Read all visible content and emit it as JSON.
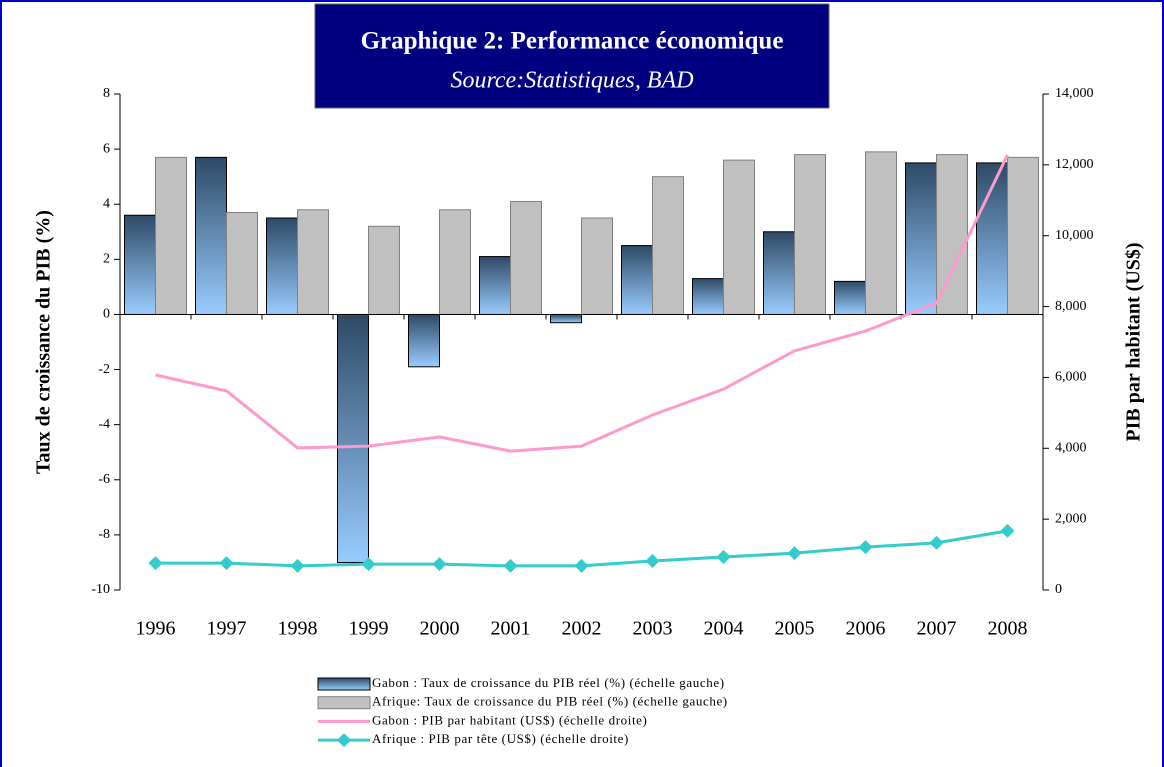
{
  "chart_data": {
    "type": "bar",
    "title": "Graphique 2: Performance économique",
    "subtitle": "Source:Statistiques, BAD",
    "y_label": "Taux de croissance du PIB (%)",
    "y2_label": "PIB par habitant (US$)",
    "categories": [
      "1996",
      "1997",
      "1998",
      "1999",
      "2000",
      "2001",
      "2002",
      "2003",
      "2004",
      "2005",
      "2006",
      "2007",
      "2008"
    ],
    "series": [
      {
        "name": "Gabon : Taux de croissance du PIB réel (%) (échelle gauche)",
        "type": "bar",
        "color": "#2e4a66",
        "values": [
          3.6,
          5.7,
          3.5,
          -9.0,
          -1.9,
          2.1,
          -0.3,
          2.5,
          1.3,
          3.0,
          1.2,
          5.5,
          5.5
        ]
      },
      {
        "name": "Afrique: Taux de croissance du PIB réel (%) (échelle gauche)",
        "type": "bar",
        "color": "#c0c0c0",
        "values": [
          5.7,
          3.7,
          3.8,
          3.2,
          3.8,
          4.1,
          3.5,
          5.0,
          5.6,
          5.8,
          5.9,
          5.8,
          5.7
        ]
      },
      {
        "name": "Gabon : PIB par habitant (US$) (échelle droite)",
        "type": "line",
        "axis": "y2",
        "color": "#ff99cc",
        "values": [
          6070,
          5620,
          4010,
          4060,
          4320,
          3920,
          4060,
          4940,
          5670,
          6750,
          7310,
          8100,
          12280
        ]
      },
      {
        "name": "Afrique : PIB par tête (US$) (échelle droite)",
        "type": "line",
        "axis": "y2",
        "color": "#33cccc",
        "marker": "diamond",
        "values": [
          760,
          760,
          680,
          730,
          730,
          680,
          680,
          820,
          930,
          1040,
          1210,
          1330,
          1670
        ]
      }
    ],
    "ylim": [
      -10,
      8
    ],
    "yticks": [
      -10,
      -8,
      -6,
      -4,
      -2,
      0,
      2,
      4,
      6,
      8
    ],
    "y2lim": [
      0,
      14000
    ],
    "y2ticks": [
      0,
      {
        "value": 2000,
        "label": "2,000"
      },
      {
        "value": 4000,
        "label": "4,000"
      },
      {
        "value": 6000,
        "label": "6,000"
      },
      {
        "value": 8000,
        "label": "8,000"
      },
      {
        "value": 10000,
        "label": "10,000"
      },
      {
        "value": 12000,
        "label": "12,000"
      },
      {
        "value": 14000,
        "label": "14,000"
      }
    ],
    "grid": false,
    "legend": "bottom"
  }
}
